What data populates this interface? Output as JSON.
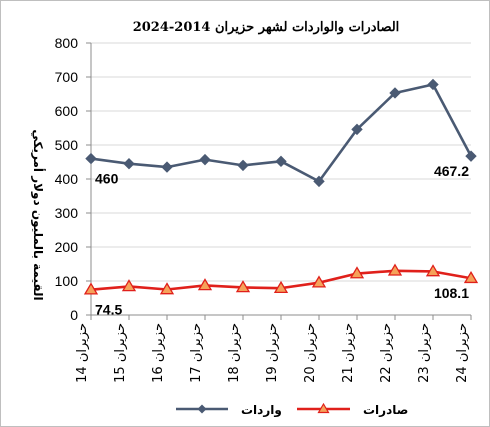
{
  "chart_data": {
    "type": "line",
    "title": "الصادرات والواردات لشهر حزيران 2014-2024",
    "ylabel": "القيمة بالمليون دولار أمريكي",
    "xlabel": "",
    "ylim": [
      0,
      800
    ],
    "yticks": [
      0,
      100,
      200,
      300,
      400,
      500,
      600,
      700,
      800
    ],
    "grid": true,
    "legend_position": "bottom",
    "categories": [
      "حزيران 14",
      "حزيران 15",
      "حزيران 16",
      "حزيران 17",
      "حزيران 18",
      "حزيران 19",
      "حزيران 20",
      "حزيران 21",
      "حزيران 22",
      "حزيران 23",
      "حزيران 24"
    ],
    "series": [
      {
        "name": "واردات",
        "color": "#4a5a73",
        "marker": "diamond",
        "values": [
          460,
          445,
          435,
          457,
          440,
          452,
          393,
          546,
          653,
          678,
          467.2
        ],
        "data_labels": [
          {
            "index": 0,
            "text": "460"
          },
          {
            "index": 10,
            "text": "467.2"
          }
        ]
      },
      {
        "name": "صادرات",
        "color": "#e0201b",
        "marker_fill": "#f5a25a",
        "marker": "triangle",
        "values": [
          74.5,
          84,
          75,
          87,
          81,
          79,
          95,
          122,
          130,
          128,
          108.1
        ],
        "data_labels": [
          {
            "index": 0,
            "text": "74.5"
          },
          {
            "index": 10,
            "text": "108.1"
          }
        ]
      }
    ]
  }
}
